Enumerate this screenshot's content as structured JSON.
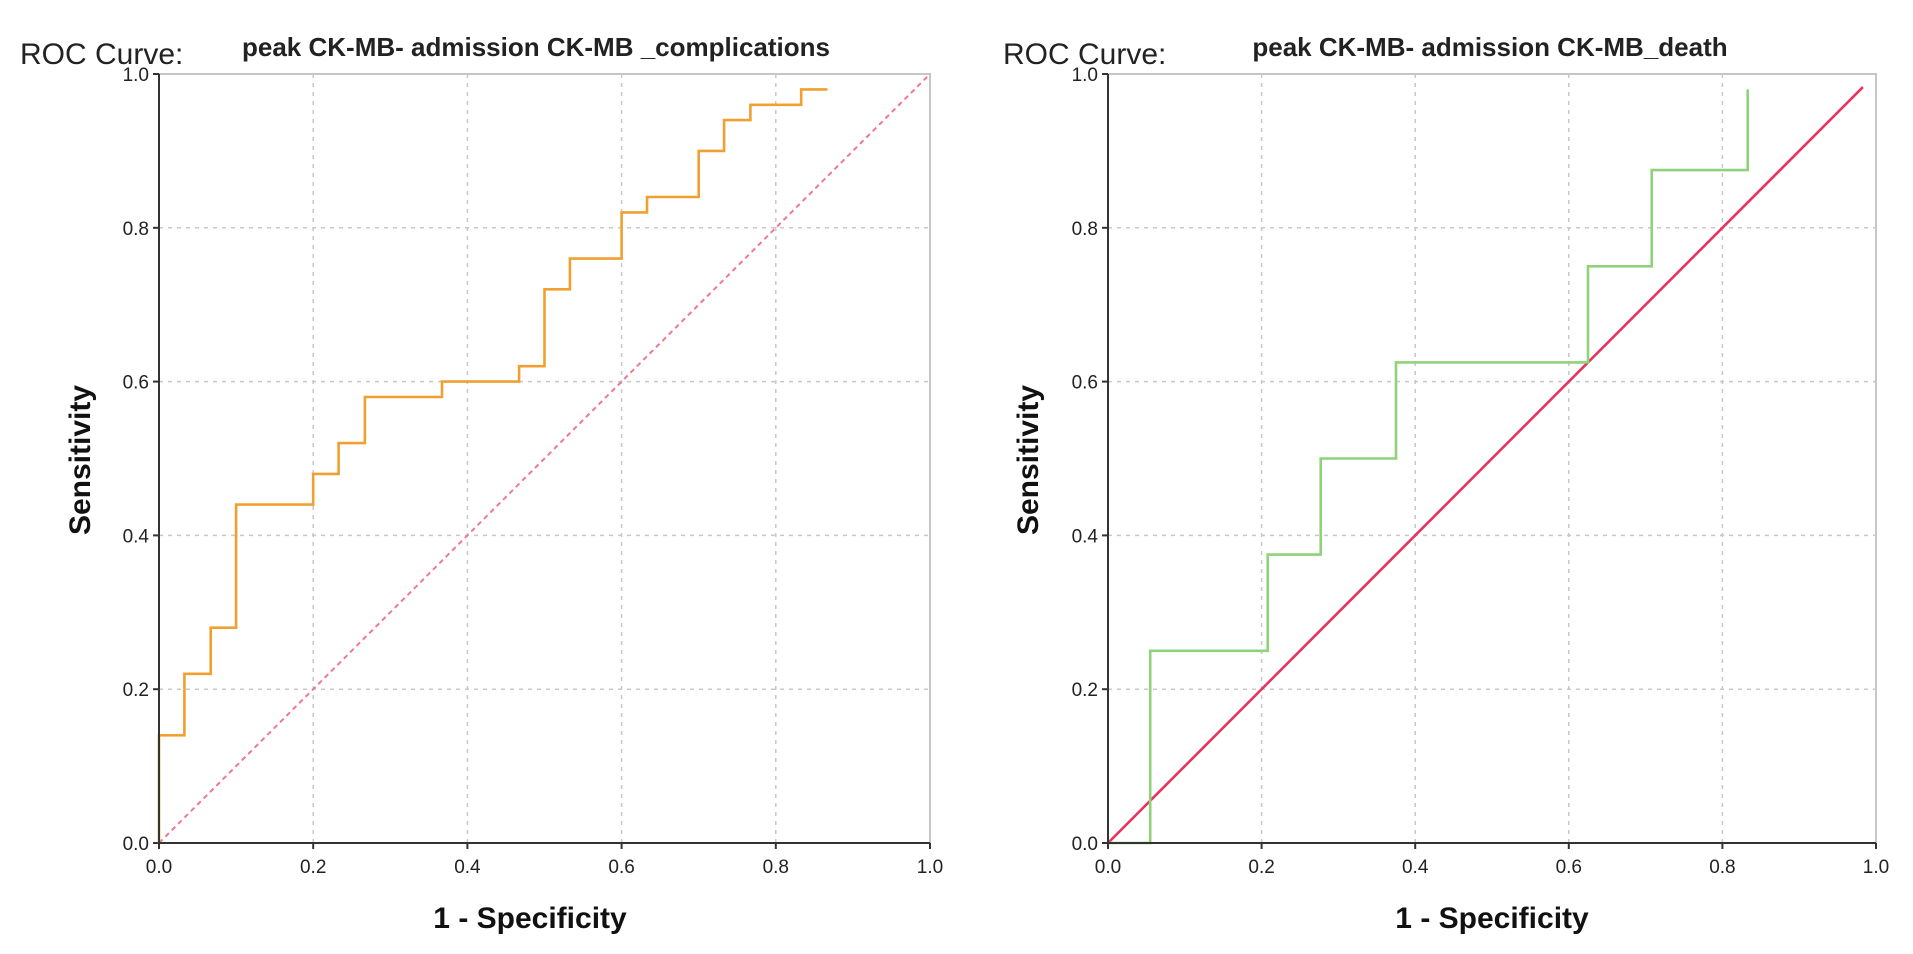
{
  "chart_data": [
    {
      "type": "line",
      "roc_label": "ROC Curve:",
      "title": "peak CK-MB- admission CK-MB _complications",
      "xlabel": "1 - Specificity",
      "ylabel": "Sensitivity",
      "xlim": [
        0,
        1
      ],
      "ylim": [
        0,
        1
      ],
      "ticks": [
        "0.0",
        "0.2",
        "0.4",
        "0.6",
        "0.8",
        "1.0"
      ],
      "grid": true,
      "series": [
        {
          "name": "ROC curve",
          "color": "#f0a030",
          "style": "solid",
          "x": [
            0.0,
            0.0,
            0.033,
            0.033,
            0.067,
            0.067,
            0.1,
            0.1,
            0.2,
            0.2,
            0.233,
            0.233,
            0.267,
            0.267,
            0.367,
            0.367,
            0.467,
            0.467,
            0.5,
            0.5,
            0.533,
            0.533,
            0.6,
            0.6,
            0.633,
            0.633,
            0.7,
            0.7,
            0.733,
            0.733,
            0.767,
            0.767,
            0.833,
            0.833,
            0.867
          ],
          "y": [
            0.0,
            0.14,
            0.14,
            0.22,
            0.22,
            0.28,
            0.28,
            0.44,
            0.44,
            0.48,
            0.48,
            0.52,
            0.52,
            0.58,
            0.58,
            0.6,
            0.6,
            0.62,
            0.62,
            0.72,
            0.72,
            0.76,
            0.76,
            0.82,
            0.82,
            0.84,
            0.84,
            0.9,
            0.9,
            0.94,
            0.94,
            0.96,
            0.96,
            0.98,
            0.98
          ]
        },
        {
          "name": "Reference line",
          "color": "#f07890",
          "style": "dashed",
          "x": [
            0,
            1
          ],
          "y": [
            0,
            1
          ]
        }
      ]
    },
    {
      "type": "line",
      "roc_label": "ROC Curve:",
      "title": "peak CK-MB- admission CK-MB_death",
      "xlabel": "1 - Specificity",
      "ylabel": "Sensitivity",
      "xlim": [
        0,
        1
      ],
      "ylim": [
        0,
        1
      ],
      "ticks": [
        "0.0",
        "0.2",
        "0.4",
        "0.6",
        "0.8",
        "1.0"
      ],
      "grid": true,
      "series": [
        {
          "name": "ROC curve",
          "color": "#8fd27a",
          "style": "solid",
          "x": [
            0.0,
            0.055,
            0.055,
            0.208,
            0.208,
            0.277,
            0.277,
            0.375,
            0.375,
            0.625,
            0.625,
            0.708,
            0.708,
            0.833,
            0.833
          ],
          "y": [
            0.0,
            0.0,
            0.25,
            0.25,
            0.375,
            0.375,
            0.5,
            0.5,
            0.625,
            0.625,
            0.75,
            0.75,
            0.875,
            0.875,
            0.98
          ]
        },
        {
          "name": "Reference line",
          "color": "#e8335a",
          "style": "solid",
          "x": [
            0,
            0.983
          ],
          "y": [
            0,
            0.983
          ]
        }
      ]
    }
  ]
}
